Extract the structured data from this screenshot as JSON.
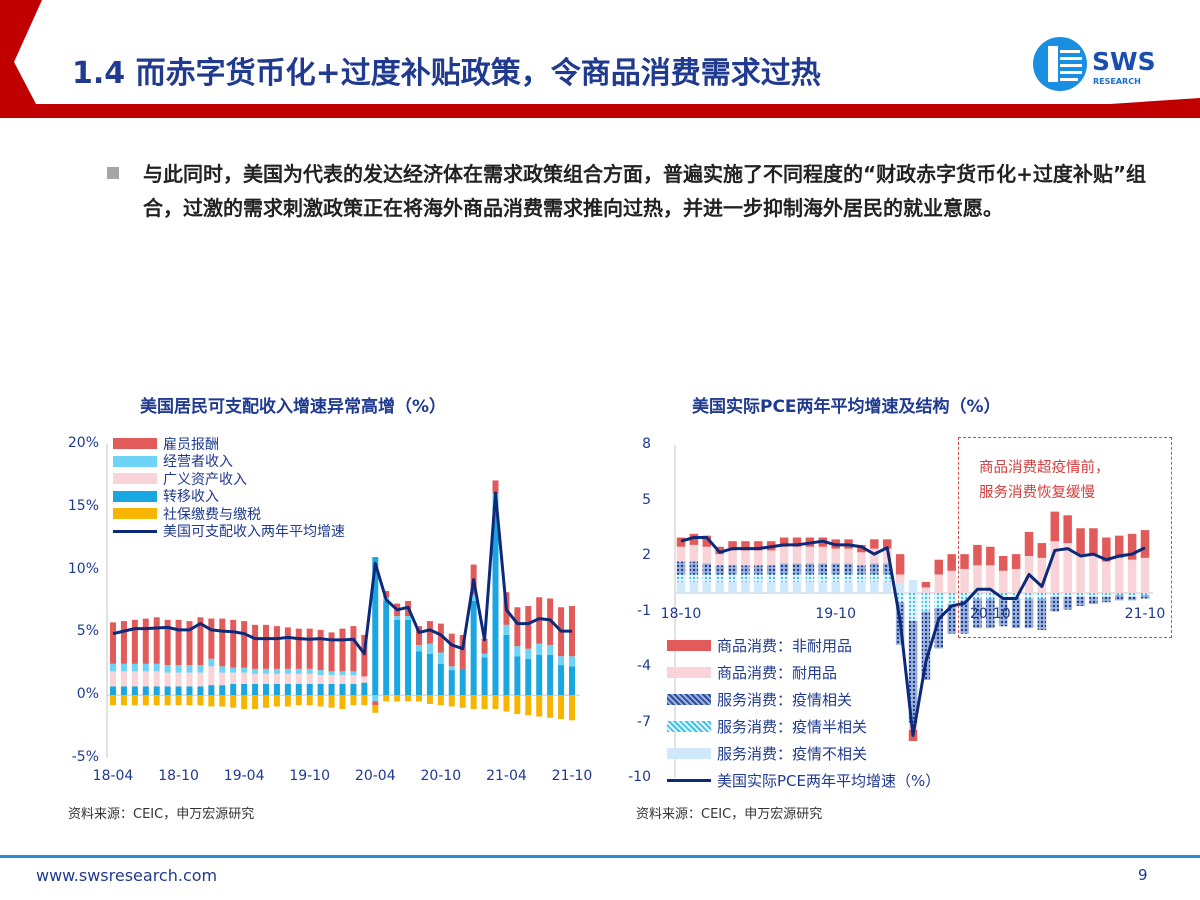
{
  "header": {
    "title": "1.4 而赤字货币化+过度补贴政策，令商品消费需求过热",
    "logo_text": "SWS",
    "logo_subtext": "RESEARCH",
    "accent_color": "#c00000"
  },
  "bullet": {
    "text": "与此同时，美国为代表的发达经济体在需求政策组合方面，普遍实施了不同程度的“财政赤字货币化+过度补贴”组合，过激的需求刺激政策正在将海外商品消费需求推向过热，并进一步抑制海外居民的就业意愿。"
  },
  "chart_data": [
    {
      "type": "bar",
      "stacked": true,
      "title": "美国居民可支配收入增速异常高增（%）",
      "source": "资料来源：CEIC，申万宏源研究",
      "ylim": [
        -5,
        20
      ],
      "y_ticks": [
        "20%",
        "15%",
        "10%",
        "5%",
        "0%",
        "-5%"
      ],
      "x_ticks": [
        "18-04",
        "18-10",
        "19-04",
        "19-10",
        "20-04",
        "20-10",
        "21-04",
        "21-10"
      ],
      "legend_position": "top-left",
      "categories": [
        "18-04",
        "18-05",
        "18-06",
        "18-07",
        "18-08",
        "18-09",
        "18-10",
        "18-11",
        "18-12",
        "19-01",
        "19-02",
        "19-03",
        "19-04",
        "19-05",
        "19-06",
        "19-07",
        "19-08",
        "19-09",
        "19-10",
        "19-11",
        "19-12",
        "20-01",
        "20-02",
        "20-03",
        "20-04",
        "20-05",
        "20-06",
        "20-07",
        "20-08",
        "20-09",
        "20-10",
        "20-11",
        "20-12",
        "21-01",
        "21-02",
        "21-03",
        "21-04",
        "21-05",
        "21-06",
        "21-07",
        "21-08",
        "21-09",
        "21-10"
      ],
      "series": [
        {
          "name": "雇员报酬",
          "kind": "bar",
          "color": "#e15b5b",
          "values": [
            3.3,
            3.4,
            3.5,
            3.6,
            3.7,
            3.6,
            3.6,
            3.5,
            3.8,
            3.2,
            3.8,
            3.8,
            3.7,
            3.5,
            3.5,
            3.4,
            3.3,
            3.2,
            3.2,
            3.2,
            3.1,
            3.4,
            3.6,
            3.3,
            -0.3,
            0.5,
            1.0,
            1.2,
            1.5,
            1.8,
            2.3,
            2.6,
            2.7,
            2.4,
            1.2,
            1.1,
            2.6,
            3.1,
            3.4,
            3.7,
            3.7,
            3.9,
            4.0
          ]
        },
        {
          "name": "经营者收入",
          "kind": "bar",
          "color": "#6dd3f7",
          "values": [
            0.6,
            0.6,
            0.6,
            0.6,
            0.6,
            0.6,
            0.6,
            0.6,
            0.6,
            0.6,
            0.5,
            0.4,
            0.4,
            0.4,
            0.4,
            0.4,
            0.4,
            0.4,
            0.4,
            0.4,
            0.3,
            0.3,
            0.3,
            0.0,
            -0.5,
            0.3,
            0.3,
            0.3,
            0.5,
            0.8,
            0.9,
            0.3,
            0.0,
            0.5,
            0.3,
            1.0,
            0.8,
            0.8,
            0.8,
            0.9,
            0.8,
            0.7,
            0.8
          ]
        },
        {
          "name": "广义资产收入",
          "kind": "bar",
          "color": "#f8d3d7",
          "values": [
            1.2,
            1.2,
            1.2,
            1.2,
            1.2,
            1.1,
            1.1,
            1.1,
            1.1,
            1.5,
            1.0,
            0.9,
            0.9,
            0.8,
            0.8,
            0.8,
            0.8,
            0.8,
            0.8,
            0.7,
            0.7,
            0.7,
            0.7,
            0.5,
            0,
            0,
            0,
            0,
            0,
            0,
            0,
            0,
            0,
            0,
            0,
            0,
            0,
            0,
            0,
            0,
            0,
            0,
            0
          ]
        },
        {
          "name": "转移收入",
          "kind": "bar",
          "color": "#1aa6e0",
          "values": [
            0.7,
            0.7,
            0.7,
            0.7,
            0.7,
            0.7,
            0.7,
            0.7,
            0.7,
            0.8,
            0.8,
            0.9,
            0.9,
            0.9,
            0.9,
            0.9,
            0.9,
            0.9,
            0.9,
            0.9,
            0.9,
            0.9,
            0.9,
            1.0,
            11.0,
            7.5,
            6.0,
            6.0,
            3.5,
            3.3,
            2.5,
            2.0,
            2.1,
            7.5,
            3.0,
            15.0,
            4.8,
            3.1,
            2.9,
            3.2,
            3.2,
            2.4,
            2.3
          ]
        },
        {
          "name": "社保缴费与缴税",
          "kind": "bar",
          "color": "#f7b500",
          "values": [
            -0.8,
            -0.8,
            -0.8,
            -0.8,
            -0.8,
            -0.8,
            -0.8,
            -0.8,
            -0.8,
            -0.9,
            -0.9,
            -1.0,
            -1.1,
            -1.1,
            -1.0,
            -0.9,
            -0.9,
            -0.8,
            -0.8,
            -0.9,
            -1.0,
            -1.1,
            -0.8,
            -0.8,
            -0.6,
            -0.5,
            -0.5,
            -0.5,
            -0.5,
            -0.7,
            -0.8,
            -0.9,
            -1.0,
            -1.1,
            -1.1,
            -1.1,
            -1.3,
            -1.5,
            -1.6,
            -1.7,
            -1.8,
            -1.9,
            -2.0
          ]
        },
        {
          "name": "美国可支配收入两年平均增速",
          "kind": "line",
          "color": "#0d2a7a",
          "values": [
            4.9,
            5.1,
            5.3,
            5.3,
            5.35,
            5.4,
            5.2,
            5.2,
            5.7,
            5.2,
            5.1,
            5.05,
            4.9,
            4.5,
            4.5,
            4.5,
            4.6,
            4.5,
            4.45,
            4.5,
            4.4,
            4.4,
            4.45,
            3.3,
            10.5,
            7.6,
            6.8,
            7.0,
            5.0,
            5.2,
            4.8,
            4.0,
            3.7,
            9.2,
            4.4,
            16.1,
            6.8,
            5.7,
            5.7,
            6.1,
            6.0,
            5.1,
            5.1
          ]
        }
      ]
    },
    {
      "type": "bar",
      "stacked": true,
      "title": "美国实际PCE两年平均增速及结构（%）",
      "source": "资料来源：CEIC，申万宏源研究",
      "ylim": [
        -10,
        8
      ],
      "y_ticks": [
        "8",
        "5",
        "2",
        "-1",
        "-4",
        "-7",
        "-10"
      ],
      "x_ticks": [
        "18-10",
        "19-10",
        "20-10",
        "21-10"
      ],
      "legend_position": "bottom-left",
      "annotation": "商品消费超疫情前，服务消费恢复缓慢",
      "annotation_lines": [
        "商品消费超疫情前，",
        "服务消费恢复缓慢"
      ],
      "categories": [
        "18-10",
        "18-11",
        "18-12",
        "19-01",
        "19-02",
        "19-03",
        "19-04",
        "19-05",
        "19-06",
        "19-07",
        "19-08",
        "19-09",
        "19-10",
        "19-11",
        "19-12",
        "20-01",
        "20-02",
        "20-03",
        "20-04",
        "20-05",
        "20-06",
        "20-07",
        "20-08",
        "20-09",
        "20-10",
        "20-11",
        "20-12",
        "21-01",
        "21-02",
        "21-03",
        "21-04",
        "21-05",
        "21-06",
        "21-07",
        "21-08",
        "21-09",
        "21-10"
      ],
      "series": [
        {
          "name": "商品消费：非耐用品",
          "kind": "bar",
          "color": "#e15b5b",
          "values": [
            0.5,
            0.6,
            0.6,
            0.4,
            0.5,
            0.5,
            0.5,
            0.5,
            0.5,
            0.5,
            0.5,
            0.5,
            0.5,
            0.5,
            0.4,
            0.5,
            0.5,
            1.1,
            -0.6,
            0.3,
            0.8,
            0.9,
            0.8,
            1.1,
            1.0,
            0.8,
            0.8,
            1.3,
            0.8,
            1.6,
            1.5,
            1.4,
            1.4,
            1.3,
            1.2,
            1.4,
            1.5
          ]
        },
        {
          "name": "商品消费：耐用品",
          "kind": "bar",
          "color": "#f8d3d7",
          "values": [
            0.8,
            0.9,
            0.9,
            0.6,
            0.8,
            0.8,
            0.8,
            0.8,
            0.9,
            0.9,
            0.9,
            0.9,
            0.8,
            0.8,
            0.7,
            0.8,
            0.8,
            0.5,
            -0.4,
            0.3,
            1.0,
            1.2,
            1.3,
            1.5,
            1.5,
            1.2,
            1.3,
            2.0,
            1.9,
            2.8,
            2.7,
            2.1,
            2.1,
            1.7,
            1.9,
            1.8,
            1.9
          ]
        },
        {
          "name": "服务消费：疫情相关",
          "kind": "bar",
          "color": "#2b4f9c",
          "values": [
            0.7,
            0.7,
            0.6,
            0.5,
            0.5,
            0.5,
            0.5,
            0.5,
            0.6,
            0.6,
            0.6,
            0.6,
            0.6,
            0.6,
            0.5,
            0.6,
            0.6,
            -2.3,
            -5.5,
            -3.7,
            -2.2,
            -1.6,
            -1.8,
            -1.6,
            -1.6,
            -1.5,
            -1.6,
            -1.6,
            -1.7,
            -0.8,
            -0.7,
            -0.5,
            -0.4,
            -0.3,
            -0.3,
            -0.2,
            -0.2
          ]
        },
        {
          "name": "服务消费：疫情半相关",
          "kind": "bar",
          "color": "#3cc2ef",
          "values": [
            0.4,
            0.4,
            0.4,
            0.4,
            0.4,
            0.4,
            0.4,
            0.4,
            0.4,
            0.4,
            0.4,
            0.4,
            0.4,
            0.4,
            0.4,
            0.4,
            0.4,
            -0.5,
            -1.5,
            -1.0,
            -0.8,
            -0.6,
            -0.4,
            -0.3,
            -0.3,
            -0.3,
            -0.3,
            -0.3,
            -0.3,
            -0.2,
            -0.2,
            -0.2,
            -0.2,
            -0.2,
            -0.1,
            -0.2,
            -0.1
          ]
        },
        {
          "name": "服务消费：疫情不相关",
          "kind": "bar",
          "color": "#cfe8fb",
          "values": [
            0.6,
            0.6,
            0.6,
            0.6,
            0.6,
            0.6,
            0.6,
            0.6,
            0.6,
            0.6,
            0.6,
            0.6,
            0.6,
            0.6,
            0.6,
            0.6,
            0.6,
            0.5,
            0.7,
            0,
            0,
            0,
            0,
            0,
            0,
            0,
            0,
            0,
            0,
            0,
            0,
            0,
            0,
            0,
            0,
            0,
            0
          ]
        },
        {
          "name": "美国实际PCE两年平均增速（%）",
          "kind": "line",
          "color": "#0d2a7a",
          "values": [
            2.8,
            3.0,
            3.0,
            2.2,
            2.4,
            2.4,
            2.4,
            2.5,
            2.6,
            2.6,
            2.7,
            2.8,
            2.6,
            2.6,
            2.5,
            2.1,
            2.45,
            -1.5,
            -7.7,
            -3.7,
            -1.4,
            -0.7,
            -0.55,
            0.2,
            0.2,
            -0.3,
            -0.3,
            1.0,
            0.35,
            2.3,
            2.4,
            2.0,
            2.1,
            1.8,
            2.0,
            2.1,
            2.45
          ]
        }
      ]
    }
  ],
  "footer": {
    "url": "www.swsresearch.com",
    "page": "9"
  }
}
